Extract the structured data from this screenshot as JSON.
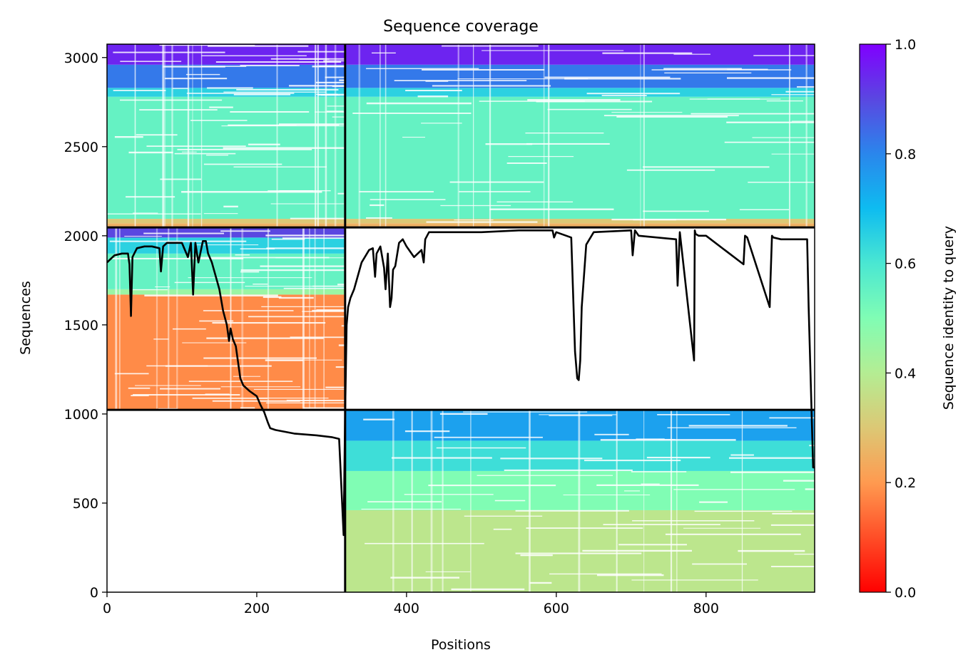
{
  "chart_data": {
    "type": "heatmap",
    "title": "Sequence coverage",
    "xlabel": "Positions",
    "ylabel": "Sequences",
    "xlim": [
      0,
      945
    ],
    "ylim": [
      0,
      3075
    ],
    "xticks": [
      0,
      200,
      400,
      600,
      800
    ],
    "yticks": [
      0,
      500,
      1000,
      1500,
      2000,
      2500,
      3000
    ],
    "colorbar": {
      "label": "Sequence identity to query",
      "range": [
        0,
        1
      ],
      "ticks": [
        "0.0",
        "0.2",
        "0.4",
        "0.6",
        "0.8",
        "1.0"
      ],
      "colormap": "rainbow_r"
    },
    "chain_boundaries": {
      "x": [
        318
      ],
      "y": [
        1023,
        2047
      ]
    },
    "blocks": [
      {
        "x": [
          0,
          318
        ],
        "y": [
          2047,
          3075
        ],
        "identity_bands": [
          {
            "y": [
              2047,
              2070
            ],
            "identity": 0.25
          },
          {
            "y": [
              2070,
              2095
            ],
            "identity": 0.3
          },
          {
            "y": [
              2095,
              2780
            ],
            "identity": 0.55
          },
          {
            "y": [
              2780,
              2830
            ],
            "identity": 0.65
          },
          {
            "y": [
              2830,
              2960
            ],
            "identity": 0.82
          },
          {
            "y": [
              2960,
              3075
            ],
            "identity": 0.95
          }
        ]
      },
      {
        "x": [
          318,
          945
        ],
        "y": [
          2047,
          3075
        ],
        "identity_bands": [
          {
            "y": [
              2047,
              2070
            ],
            "identity": 0.25
          },
          {
            "y": [
              2070,
              2095
            ],
            "identity": 0.3
          },
          {
            "y": [
              2095,
              2780
            ],
            "identity": 0.55
          },
          {
            "y": [
              2780,
              2830
            ],
            "identity": 0.65
          },
          {
            "y": [
              2830,
              2960
            ],
            "identity": 0.82
          },
          {
            "y": [
              2960,
              3075
            ],
            "identity": 0.95
          }
        ]
      },
      {
        "x": [
          0,
          318
        ],
        "y": [
          1023,
          2047
        ],
        "identity_bands": [
          {
            "y": [
              1023,
              1670
            ],
            "identity": 0.18
          },
          {
            "y": [
              1670,
              1700
            ],
            "identity": 0.45
          },
          {
            "y": [
              1700,
              1900
            ],
            "identity": 0.55
          },
          {
            "y": [
              1900,
              1990
            ],
            "identity": 0.65
          },
          {
            "y": [
              1990,
              2047
            ],
            "identity": 0.9
          }
        ]
      },
      {
        "x": [
          318,
          945
        ],
        "y": [
          0,
          1023
        ],
        "identity_bands": [
          {
            "y": [
              0,
              460
            ],
            "identity": 0.38
          },
          {
            "y": [
              460,
              680
            ],
            "identity": 0.5
          },
          {
            "y": [
              680,
              850
            ],
            "identity": 0.62
          },
          {
            "y": [
              850,
              1023
            ],
            "identity": 0.75
          }
        ]
      }
    ],
    "coverage_line": {
      "x": [
        0,
        5,
        10,
        20,
        28,
        30,
        32,
        34,
        40,
        50,
        60,
        70,
        72,
        75,
        80,
        90,
        100,
        108,
        112,
        115,
        118,
        122,
        128,
        132,
        135,
        140,
        150,
        155,
        160,
        163,
        165,
        168,
        172,
        178,
        182,
        190,
        200,
        205,
        210,
        215,
        218,
        225,
        250,
        280,
        300,
        310,
        314,
        316,
        318,
        320,
        322,
        325,
        330,
        340,
        350,
        355,
        358,
        360,
        365,
        370,
        372,
        375,
        378,
        380,
        382,
        385,
        390,
        395,
        400,
        410,
        420,
        423,
        425,
        430,
        450,
        500,
        550,
        595,
        597,
        600,
        620,
        625,
        628,
        630,
        632,
        634,
        640,
        650,
        700,
        702,
        705,
        710,
        760,
        762,
        765,
        784,
        785,
        786,
        790,
        800,
        850,
        852,
        855,
        885,
        886,
        888,
        890,
        900,
        935,
        937,
        939,
        941,
        943,
        945
      ],
      "y": [
        1850,
        1870,
        1890,
        1900,
        1900,
        1840,
        1550,
        1880,
        1930,
        1940,
        1940,
        1930,
        1800,
        1940,
        1960,
        1960,
        1960,
        1880,
        1960,
        1670,
        1960,
        1850,
        1970,
        1970,
        1900,
        1850,
        1700,
        1580,
        1500,
        1410,
        1480,
        1420,
        1380,
        1200,
        1160,
        1130,
        1100,
        1050,
        1010,
        950,
        920,
        910,
        890,
        880,
        870,
        860,
        500,
        320,
        1000,
        1500,
        1600,
        1650,
        1700,
        1850,
        1920,
        1930,
        1770,
        1900,
        1940,
        1820,
        1700,
        1900,
        1600,
        1650,
        1810,
        1830,
        1960,
        1980,
        1940,
        1880,
        1920,
        1850,
        1980,
        2020,
        2020,
        2020,
        2030,
        2030,
        1990,
        2020,
        1990,
        1350,
        1200,
        1190,
        1300,
        1600,
        1950,
        2020,
        2030,
        1890,
        2030,
        2000,
        1980,
        1720,
        2020,
        1300,
        2030,
        2010,
        2000,
        2000,
        1840,
        2000,
        1990,
        1600,
        1750,
        2000,
        1990,
        1980,
        1980,
        1600,
        1300,
        1000,
        700,
        700
      ]
    }
  }
}
